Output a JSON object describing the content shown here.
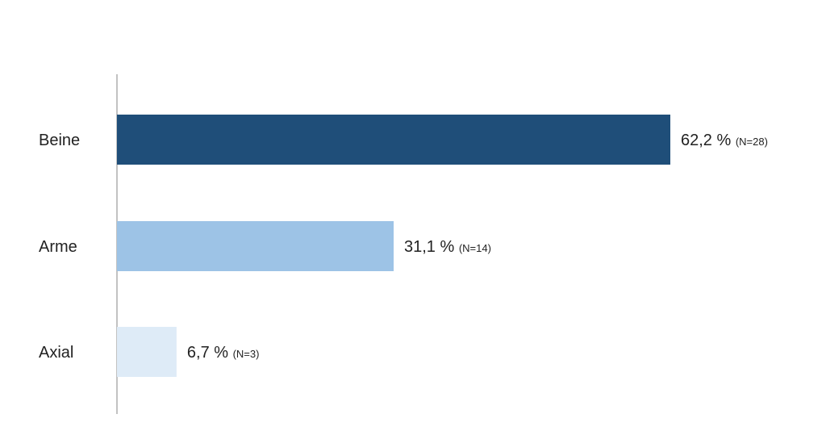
{
  "chart_data": {
    "type": "bar",
    "orientation": "horizontal",
    "categories": [
      "Beine",
      "Arme",
      "Axial"
    ],
    "values": [
      62.2,
      31.1,
      6.7
    ],
    "value_labels": [
      "62,2 %",
      "31,1 %",
      "6,7 %"
    ],
    "n_labels": [
      "(N=28)",
      "(N=14)",
      "(N=3)"
    ],
    "colors": [
      "#1f4e79",
      "#9dc3e6",
      "#deebf7"
    ],
    "xlim": [
      0,
      62.2
    ],
    "grid": false,
    "legend": "none",
    "title": "",
    "xlabel": "",
    "ylabel": ""
  }
}
